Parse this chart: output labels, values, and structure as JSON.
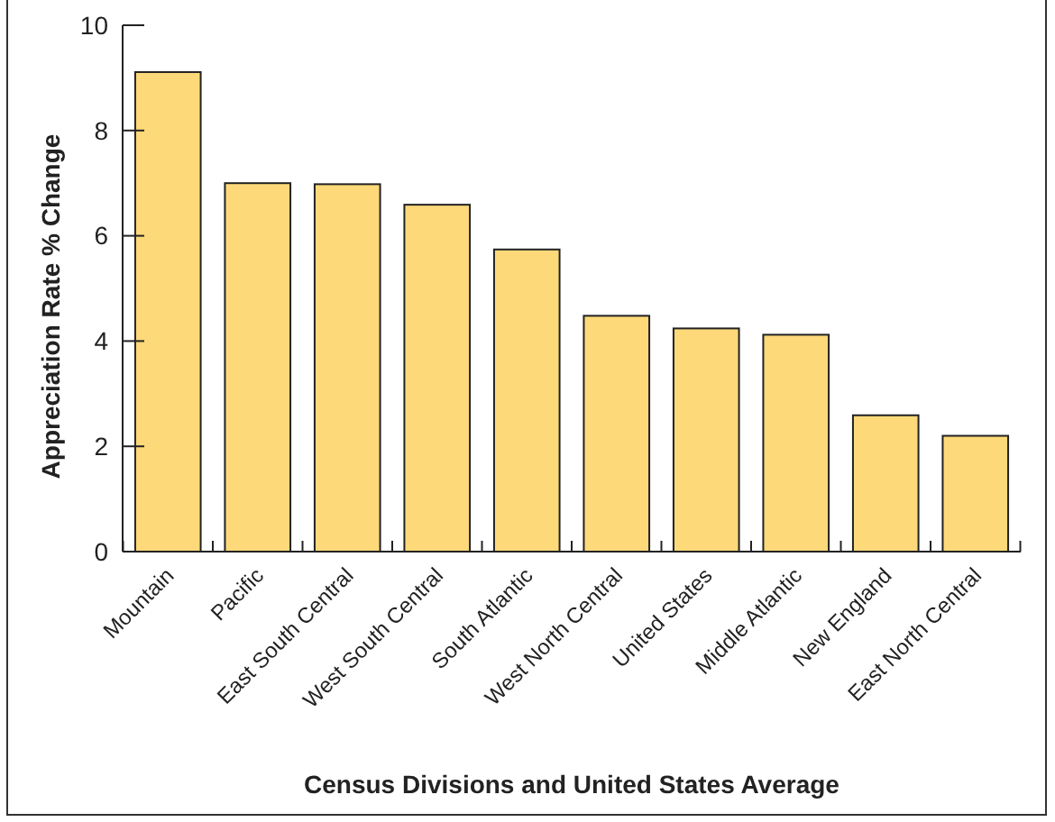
{
  "chart_data": {
    "type": "bar",
    "xlabel": "Census Divisions and United States Average",
    "ylabel": "Appreciation Rate % Change",
    "categories": [
      "Mountain",
      "Pacific",
      "East South Central",
      "West South Central",
      "South Atlantic",
      "West North Central",
      "United States",
      "Middle Atlantic",
      "New England",
      "East North Central"
    ],
    "values": [
      9.11,
      7.0,
      6.98,
      6.59,
      5.74,
      4.48,
      4.24,
      4.12,
      2.59,
      2.2
    ],
    "color": "#fdd97a",
    "ylim": [
      0,
      10
    ],
    "yticks": [
      0,
      2,
      4,
      6,
      8,
      10
    ],
    "grid": false
  }
}
